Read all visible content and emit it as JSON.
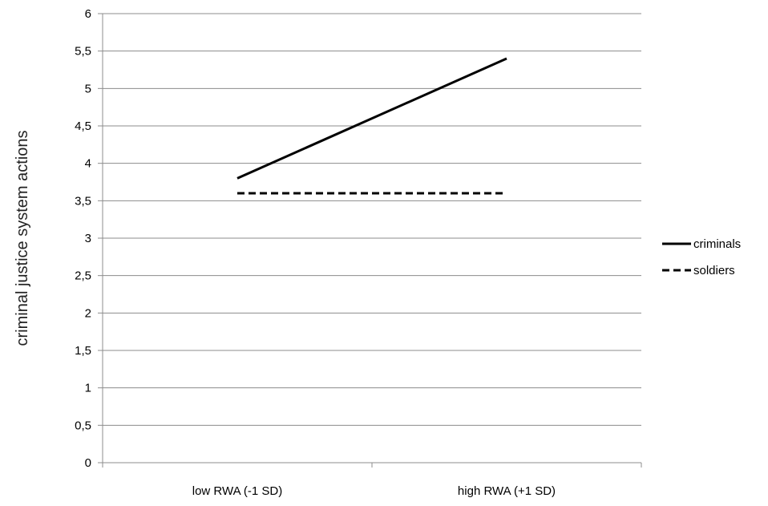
{
  "chart_data": {
    "type": "line",
    "title": "",
    "xlabel": "",
    "ylabel": "criminal justice system actions",
    "categories": [
      "low RWA (-1 SD)",
      "high RWA (+1 SD)"
    ],
    "ylim": [
      0,
      6
    ],
    "yticks": [
      0,
      0.5,
      1,
      1.5,
      2,
      2.5,
      3,
      3.5,
      4,
      4.5,
      5,
      5.5,
      6
    ],
    "ytick_labels": [
      "0",
      "0,5",
      "1",
      "1,5",
      "2",
      "2,5",
      "3",
      "3,5",
      "4",
      "4,5",
      "5",
      "5,5",
      "6"
    ],
    "grid": true,
    "legend_position": "right",
    "series": [
      {
        "name": "criminals",
        "values": [
          3.8,
          5.4
        ],
        "style": "solid",
        "color": "#000000"
      },
      {
        "name": "soldiers",
        "values": [
          3.6,
          3.6
        ],
        "style": "dashed",
        "color": "#000000"
      }
    ]
  }
}
